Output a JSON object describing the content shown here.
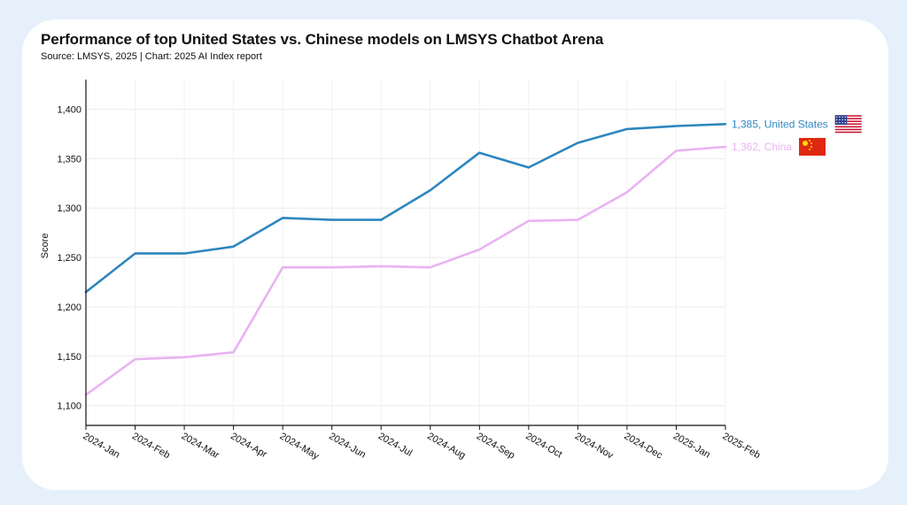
{
  "chart_data": {
    "type": "line",
    "title": "Performance of top United States vs. Chinese models on LMSYS Chatbot Arena",
    "subtitle": "Source: LMSYS, 2025 | Chart: 2025 AI Index report",
    "ylabel": "Score",
    "xlabel": "",
    "ylim": [
      1080,
      1430
    ],
    "y_ticks": [
      1100,
      1150,
      1200,
      1250,
      1300,
      1350,
      1400
    ],
    "y_tick_labels": [
      "1,100",
      "1,150",
      "1,200",
      "1,250",
      "1,300",
      "1,350",
      "1,400"
    ],
    "grid": true,
    "legend": "end-of-line labels",
    "categories": [
      "2024-Jan",
      "2024-Feb",
      "2024-Mar",
      "2024-Apr",
      "2024-May",
      "2024-Jun",
      "2024-Jul",
      "2024-Aug",
      "2024-Sep",
      "2024-Oct",
      "2024-Nov",
      "2024-Dec",
      "2025-Jan",
      "2025-Feb"
    ],
    "series": [
      {
        "name": "United States",
        "label": "1,385, United States",
        "color": "#2e86bf",
        "icon": "us-flag-icon",
        "values": [
          1215,
          1254,
          1254,
          1261,
          1290,
          1288,
          1288,
          1318,
          1356,
          1341,
          1366,
          1380,
          1383,
          1385
        ]
      },
      {
        "name": "China",
        "label": "1,362, China",
        "color": "#e9b3f2",
        "icon": "china-flag-icon",
        "values": [
          1111,
          1147,
          1149,
          1154,
          1240,
          1240,
          1241,
          1240,
          1258,
          1287,
          1288,
          1316,
          1358,
          1362
        ]
      }
    ]
  }
}
